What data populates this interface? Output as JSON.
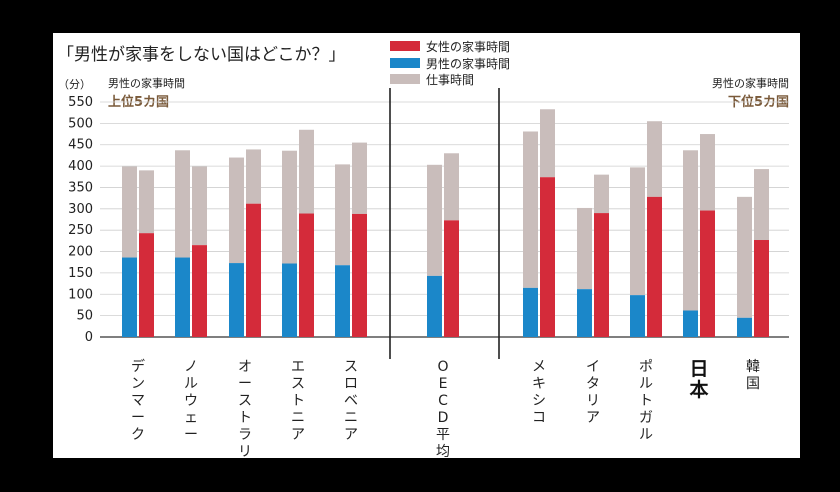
{
  "chart_data": {
    "type": "bar",
    "title": "「男性が家事をしない国はどこか？」",
    "y_unit": "（分）",
    "ylim": [
      0,
      550
    ],
    "y_ticks": [
      0,
      50,
      100,
      150,
      200,
      250,
      300,
      350,
      400,
      450,
      500,
      550
    ],
    "grid": true,
    "legend_position": "top-center",
    "legend": [
      {
        "label": "女性の家事時間",
        "color": "#d42b3a"
      },
      {
        "label": "男性の家事時間",
        "color": "#1b87c9"
      },
      {
        "label": "仕事時間",
        "color": "#c9bdbb"
      }
    ],
    "annotations": {
      "left_caption": "男性の家事時間",
      "left_group": "上位5カ国",
      "right_caption": "男性の家事時間",
      "right_group": "下位5カ国"
    },
    "categories": [
      "デンマーク",
      "ノルウェー",
      "オーストラリア",
      "エストニア",
      "スロベニア",
      "OECD平均",
      "メキシコ",
      "イタリア",
      "ポルトガル",
      "日本",
      "韓国"
    ],
    "highlight_category": "日本",
    "series": [
      {
        "name": "男性の家事時間",
        "values": [
          186,
          186,
          173,
          172,
          168,
          143,
          115,
          112,
          98,
          62,
          45
        ]
      },
      {
        "name": "男性の仕事時間",
        "values": [
          213,
          251,
          247,
          264,
          236,
          260,
          366,
          190,
          299,
          375,
          283
        ]
      },
      {
        "name": "女性の家事時間",
        "values": [
          243,
          215,
          312,
          289,
          288,
          273,
          374,
          290,
          328,
          296,
          227
        ]
      },
      {
        "name": "女性の仕事時間",
        "values": [
          147,
          184,
          127,
          196,
          167,
          157,
          159,
          90,
          177,
          179,
          166
        ]
      }
    ]
  }
}
